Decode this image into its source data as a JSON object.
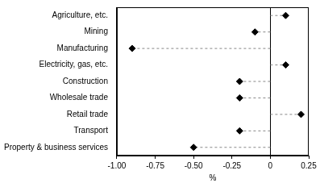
{
  "chart_data": {
    "type": "dot",
    "orientation": "horizontal",
    "categories": [
      "Agriculture, etc.",
      "Mining",
      "Manufacturing",
      "Electricity, gas, etc.",
      "Construction",
      "Wholesale trade",
      "Retail trade",
      "Transport",
      "Property & business services"
    ],
    "values": [
      0.1,
      -0.1,
      -0.9,
      0.1,
      -0.2,
      -0.2,
      0.2,
      -0.2,
      -0.5
    ],
    "color": "#000000",
    "marker": "diamond",
    "line_style": "dashed",
    "x_label": "%",
    "xlim": [
      -1.0,
      0.25
    ],
    "xticks": [
      {
        "value": -1.0,
        "label": "-1.00"
      },
      -0.75,
      {
        "value": -0.5,
        "label": "-0.50"
      },
      -0.25,
      0,
      0.25
    ],
    "grid": false
  }
}
